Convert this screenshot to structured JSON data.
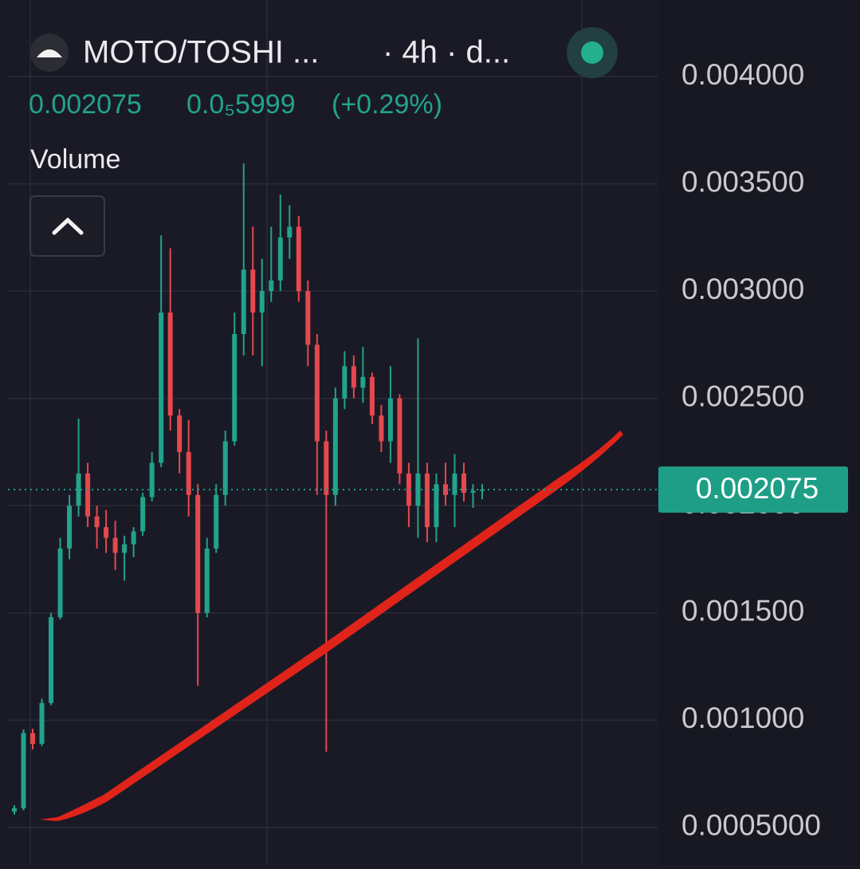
{
  "header": {
    "pair": "MOTO/TOSHI ...",
    "interval": "· 4h · d...",
    "price": "0.002075",
    "change": "0.0₅5999",
    "change_pct": "(+0.29%)",
    "indicator": "Volume"
  },
  "chart_data": {
    "type": "candlestick",
    "up_color": "#22a38b",
    "down_color": "#e5484d",
    "open": [
      0.000574,
      0.00059,
      0.00094,
      0.00089,
      0.00108,
      0.00148,
      0.0018,
      0.002,
      0.00215,
      0.00195,
      0.0019,
      0.00185,
      0.00178,
      0.00182,
      0.00188,
      0.00204,
      0.0022,
      0.0029,
      0.00242,
      0.00225,
      0.00205,
      0.0015,
      0.0018,
      0.00205,
      0.0023,
      0.0028,
      0.0031,
      0.0029,
      0.003,
      0.00305,
      0.00325,
      0.0033,
      0.003,
      0.00275,
      0.0023,
      0.00205,
      0.0025,
      0.00265,
      0.00255,
      0.0026,
      0.00242,
      0.0023,
      0.0025,
      0.00215,
      0.002,
      0.00215,
      0.0019,
      0.0021,
      0.00205,
      0.00215,
      0.00206,
      0.002069
    ],
    "high": [
      0.000604,
      0.000957,
      0.00096,
      0.0011,
      0.0015,
      0.00185,
      0.00205,
      0.002406,
      0.0022,
      0.002,
      0.00198,
      0.00193,
      0.00186,
      0.0019,
      0.00206,
      0.00225,
      0.00326,
      0.0032,
      0.00245,
      0.0024,
      0.0021,
      0.00185,
      0.0021,
      0.00235,
      0.0029,
      0.003595,
      0.0033,
      0.00315,
      0.0033,
      0.00345,
      0.0034,
      0.00335,
      0.00305,
      0.0028,
      0.00235,
      0.00255,
      0.00272,
      0.0027,
      0.00274,
      0.00262,
      0.00247,
      0.00265,
      0.00252,
      0.0022,
      0.00278,
      0.0022,
      0.00215,
      0.0022,
      0.00224,
      0.0022,
      0.0021,
      0.0021
    ],
    "low": [
      0.00056,
      0.00058,
      0.000864,
      0.00088,
      0.00107,
      0.00147,
      0.00175,
      0.00195,
      0.0019,
      0.0018,
      0.00178,
      0.0017,
      0.00165,
      0.00176,
      0.00186,
      0.00202,
      0.00218,
      0.00235,
      0.00215,
      0.00195,
      0.00116,
      0.00148,
      0.00178,
      0.002,
      0.00228,
      0.0027,
      0.0027,
      0.00265,
      0.00295,
      0.003,
      0.00315,
      0.00295,
      0.00265,
      0.00205,
      0.000853,
      0.002,
      0.00245,
      0.0025,
      0.00248,
      0.00238,
      0.00225,
      0.0022,
      0.0021,
      0.0019,
      0.00185,
      0.00183,
      0.00183,
      0.002,
      0.0019,
      0.00202,
      0.00199,
      0.00203
    ],
    "close": [
      0.00059,
      0.00094,
      0.00089,
      0.00108,
      0.00148,
      0.0018,
      0.002,
      0.00215,
      0.00195,
      0.0019,
      0.00185,
      0.00178,
      0.00182,
      0.00188,
      0.00204,
      0.0022,
      0.0029,
      0.00242,
      0.00225,
      0.00205,
      0.0015,
      0.0018,
      0.00205,
      0.0023,
      0.0028,
      0.0031,
      0.0029,
      0.003,
      0.00305,
      0.00325,
      0.0033,
      0.003,
      0.00275,
      0.0023,
      0.00205,
      0.0025,
      0.00265,
      0.00255,
      0.0026,
      0.00242,
      0.0023,
      0.0025,
      0.00215,
      0.002,
      0.00215,
      0.0019,
      0.0021,
      0.00205,
      0.00215,
      0.00206,
      0.002069,
      0.002075
    ],
    "last_price": 0.002075,
    "last_color": "#1e9e86",
    "ylim": [
      0.000325,
      0.004357
    ],
    "yticks": [
      {
        "value": 0.0005,
        "label": "0.0005000"
      },
      {
        "value": 0.001,
        "label": "0.001000"
      },
      {
        "value": 0.0015,
        "label": "0.001500"
      },
      {
        "value": 0.002,
        "label": "0.002000"
      },
      {
        "value": 0.0025,
        "label": "0.002500"
      },
      {
        "value": 0.003,
        "label": "0.003000"
      },
      {
        "value": 0.0035,
        "label": "0.003500"
      },
      {
        "value": 0.004,
        "label": "0.004000"
      }
    ],
    "grid": true
  }
}
